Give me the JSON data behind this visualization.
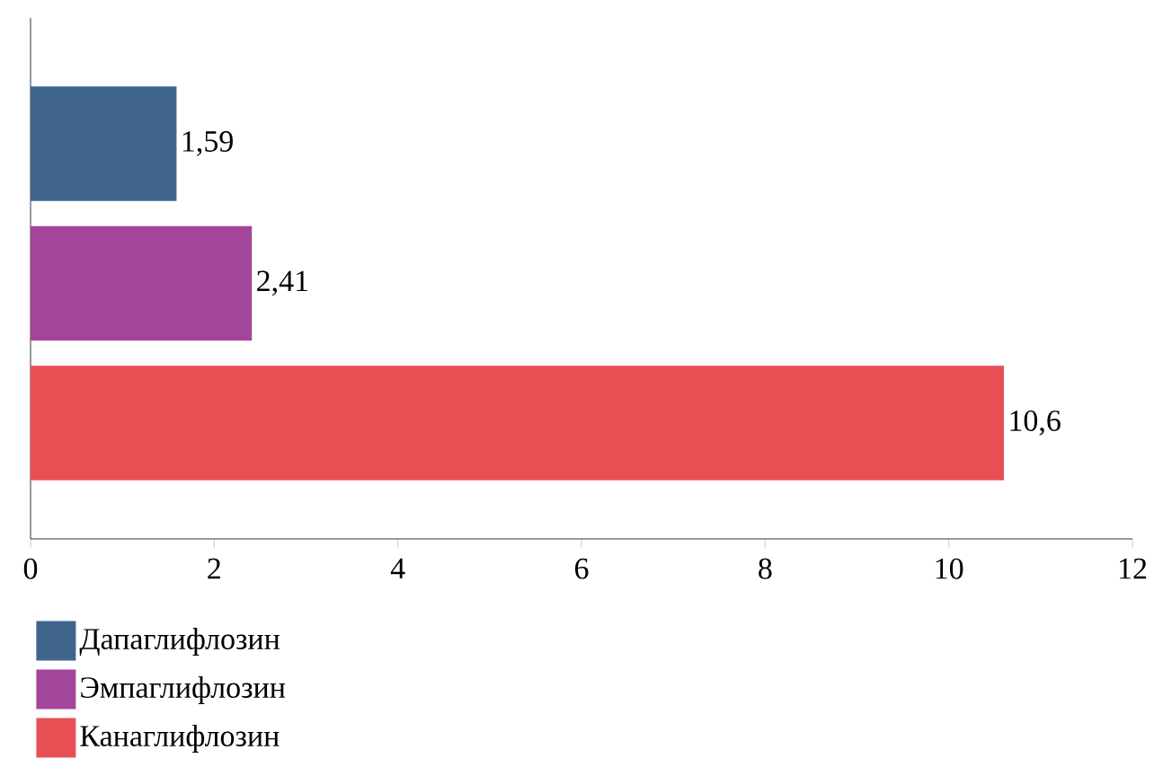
{
  "chart_data": {
    "type": "bar",
    "orientation": "horizontal",
    "categories": [
      null,
      null,
      null
    ],
    "series": [
      {
        "name": "Дапаглифлозин",
        "color": "#3f658c",
        "values": [
          1.59,
          null,
          null
        ],
        "value_labels": [
          "1,59",
          null,
          null
        ]
      },
      {
        "name": "Эмпаглифлозин",
        "color": "#a3459a",
        "values": [
          null,
          2.41,
          null
        ],
        "value_labels": [
          null,
          "2,41",
          null
        ]
      },
      {
        "name": "Канаглифлозин",
        "color": "#e84f55",
        "values": [
          null,
          null,
          10.6
        ],
        "value_labels": [
          null,
          null,
          "10,6"
        ]
      }
    ],
    "xlim": [
      0,
      12
    ],
    "xticks": [
      0,
      2,
      4,
      6,
      8,
      10,
      12
    ],
    "legend": "bottom",
    "grid": false
  }
}
